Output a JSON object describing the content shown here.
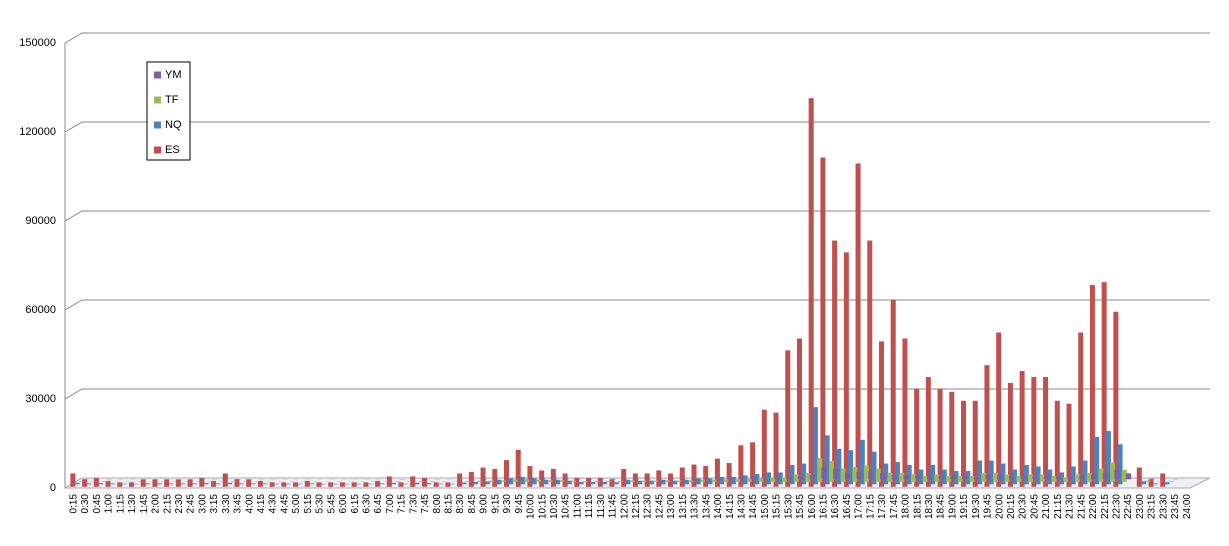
{
  "chart_data": {
    "type": "bar3d",
    "categories": [
      "0:15",
      "0:30",
      "0:45",
      "1:00",
      "1:15",
      "1:30",
      "1:45",
      "2:00",
      "2:15",
      "2:30",
      "2:45",
      "3:00",
      "3:15",
      "3:30",
      "3:45",
      "4:00",
      "4:15",
      "4:30",
      "4:45",
      "5:00",
      "5:15",
      "5:30",
      "5:45",
      "6:00",
      "6:15",
      "6:30",
      "6:45",
      "7:00",
      "7:15",
      "7:30",
      "7:45",
      "8:00",
      "8:15",
      "8:30",
      "8:45",
      "9:00",
      "9:15",
      "9:30",
      "9:45",
      "10:00",
      "10:15",
      "10:30",
      "10:45",
      "11:00",
      "11:15",
      "11:30",
      "11:45",
      "12:00",
      "12:15",
      "12:30",
      "12:45",
      "13:00",
      "13:15",
      "13:30",
      "13:45",
      "14:00",
      "14:15",
      "14:30",
      "14:45",
      "15:00",
      "15:15",
      "15:30",
      "15:45",
      "16:00",
      "16:15",
      "16:30",
      "16:45",
      "17:00",
      "17:15",
      "17:30",
      "17:45",
      "18:00",
      "18:15",
      "18:30",
      "18:45",
      "19:00",
      "19:15",
      "19:30",
      "19:45",
      "20:00",
      "20:15",
      "20:30",
      "20:45",
      "21:00",
      "21:15",
      "21:30",
      "21:45",
      "22:00",
      "22:15",
      "22:30",
      "22:45",
      "23:00",
      "23:15",
      "23:30",
      "23:45",
      "24:00"
    ],
    "series": [
      {
        "name": "YM",
        "color": "#7d60a0",
        "values": [
          100,
          50,
          80,
          50,
          50,
          50,
          50,
          50,
          50,
          50,
          50,
          80,
          50,
          100,
          50,
          50,
          50,
          50,
          50,
          50,
          50,
          50,
          50,
          50,
          50,
          50,
          50,
          100,
          50,
          100,
          80,
          50,
          50,
          100,
          150,
          200,
          250,
          350,
          450,
          350,
          250,
          250,
          200,
          150,
          150,
          150,
          150,
          250,
          200,
          200,
          250,
          200,
          250,
          350,
          350,
          450,
          450,
          500,
          600,
          750,
          750,
          1200,
          1500,
          4000,
          3500,
          2200,
          2500,
          2700,
          2200,
          1500,
          1500,
          1200,
          1000,
          1200,
          1000,
          1000,
          1000,
          1500,
          1500,
          1200,
          1000,
          1200,
          1200,
          1000,
          800,
          1200,
          1500,
          2200,
          3200,
          2000,
          0,
          200,
          50,
          100,
          0,
          0
        ]
      },
      {
        "name": "TF",
        "color": "#9bbb59",
        "values": [
          200,
          100,
          150,
          100,
          100,
          100,
          100,
          100,
          100,
          100,
          100,
          150,
          100,
          200,
          100,
          100,
          100,
          100,
          100,
          100,
          100,
          100,
          100,
          100,
          100,
          100,
          100,
          200,
          100,
          200,
          150,
          100,
          100,
          200,
          300,
          400,
          500,
          700,
          900,
          700,
          500,
          500,
          400,
          300,
          300,
          300,
          300,
          500,
          400,
          400,
          500,
          400,
          500,
          700,
          700,
          900,
          900,
          1000,
          1200,
          1500,
          1500,
          2500,
          3000,
          8000,
          7000,
          4500,
          5000,
          5500,
          4500,
          3000,
          3000,
          2500,
          2000,
          2500,
          2000,
          2000,
          2000,
          3000,
          3000,
          2500,
          2000,
          2500,
          2500,
          2000,
          1500,
          2500,
          3000,
          4500,
          6500,
          4000,
          0,
          400,
          100,
          200,
          0,
          0
        ]
      },
      {
        "name": "NQ",
        "color": "#4f81bd",
        "values": [
          500,
          300,
          400,
          300,
          200,
          200,
          300,
          300,
          300,
          300,
          300,
          400,
          300,
          500,
          300,
          300,
          300,
          200,
          200,
          200,
          300,
          200,
          200,
          200,
          200,
          200,
          300,
          500,
          200,
          500,
          400,
          200,
          200,
          600,
          800,
          1000,
          1500,
          2000,
          2500,
          2000,
          1500,
          1500,
          1200,
          800,
          800,
          800,
          700,
          1500,
          1200,
          1200,
          1500,
          1200,
          1500,
          2000,
          2000,
          2500,
          2500,
          3000,
          3500,
          4000,
          4000,
          6500,
          7000,
          26000,
          16500,
          12000,
          11500,
          15000,
          11000,
          7000,
          7500,
          6500,
          5000,
          6500,
          5000,
          4500,
          4500,
          8000,
          8000,
          7000,
          5000,
          6500,
          6000,
          5000,
          4000,
          6000,
          8000,
          16000,
          18000,
          13500,
          0,
          1000,
          300,
          700,
          0,
          0
        ]
      },
      {
        "name": "ES",
        "color": "#c0504d",
        "values": [
          4500,
          2500,
          3000,
          2000,
          1500,
          1500,
          2500,
          2500,
          2500,
          2500,
          2500,
          3000,
          2000,
          4500,
          2500,
          2500,
          2000,
          1500,
          1500,
          1500,
          2000,
          1500,
          1500,
          1500,
          1500,
          1500,
          2000,
          3500,
          1500,
          3500,
          3000,
          1500,
          1500,
          4500,
          5000,
          6500,
          6000,
          9000,
          12500,
          7000,
          5500,
          6000,
          4500,
          3000,
          3000,
          3000,
          2500,
          6000,
          4500,
          4500,
          5500,
          4500,
          6500,
          7500,
          7000,
          9500,
          8000,
          14000,
          15000,
          26000,
          25000,
          46000,
          50000,
          131000,
          111000,
          83000,
          79000,
          109000,
          83000,
          49000,
          63000,
          50000,
          33000,
          37000,
          33000,
          32000,
          29000,
          29000,
          41000,
          52000,
          35000,
          39000,
          37000,
          37000,
          29000,
          28000,
          52000,
          68000,
          69000,
          59000,
          0,
          6500,
          2500,
          4500,
          0,
          0
        ]
      }
    ],
    "ylim": [
      0,
      150000
    ],
    "yticks": [
      0,
      30000,
      60000,
      90000,
      120000,
      150000
    ],
    "grid": true,
    "legend": "upper left"
  }
}
